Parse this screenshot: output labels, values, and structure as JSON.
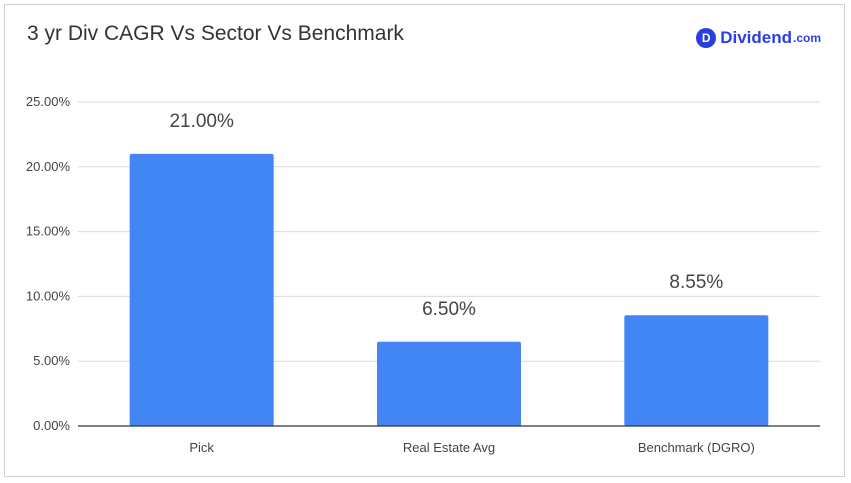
{
  "header": {
    "title": "3 yr Div CAGR Vs Sector Vs Benchmark",
    "logo_badge": "D",
    "logo_name": "Dividend",
    "logo_suffix": ".com"
  },
  "colors": {
    "bar": "#4285f4",
    "grid": "#d9d9d9",
    "axis": "#333333",
    "text": "#444444",
    "brand": "#2a3fe0"
  },
  "chart_data": {
    "type": "bar",
    "title": "3 yr Div CAGR Vs Sector Vs Benchmark",
    "categories": [
      "Pick",
      "Real Estate Avg",
      "Benchmark (DGRO)"
    ],
    "values": [
      21.0,
      6.5,
      8.55
    ],
    "data_labels": [
      "21.00%",
      "6.50%",
      "8.55%"
    ],
    "ylim": [
      0,
      25
    ],
    "yticks": [
      0,
      5,
      10,
      15,
      20,
      25
    ],
    "ytick_labels": [
      "0.00%",
      "5.00%",
      "10.00%",
      "15.00%",
      "20.00%",
      "25.00%"
    ],
    "grid": true,
    "legend": "none"
  }
}
